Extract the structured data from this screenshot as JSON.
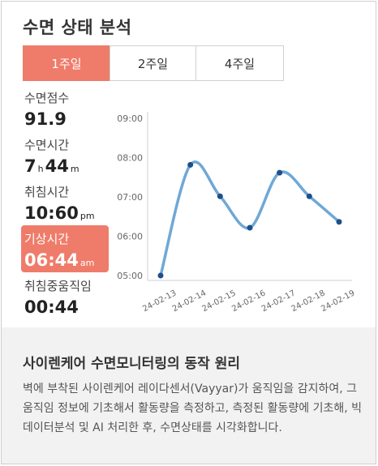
{
  "title": "수면 상태 분석",
  "tabs": [
    {
      "label": "1주일",
      "active": true
    },
    {
      "label": "2주일",
      "active": false
    },
    {
      "label": "4주일",
      "active": false
    }
  ],
  "stats": {
    "sleep_score": {
      "label": "수면점수",
      "value": "91.9"
    },
    "sleep_time": {
      "label": "수면시간",
      "hours": "7",
      "h_unit": "h",
      "minutes": "44",
      "m_unit": "m"
    },
    "bed_time": {
      "label": "취침시간",
      "value": "10:60",
      "suffix": "pm"
    },
    "wake_time": {
      "label": "기상시간",
      "value": "06:44",
      "suffix": "am"
    },
    "movement": {
      "label": "취침중움직임",
      "value": "00:44"
    }
  },
  "chart_data": {
    "type": "line",
    "x": [
      "24-02-13",
      "24-02-14",
      "24-02-15",
      "24-02-16",
      "24-02-17",
      "24-02-18",
      "24-02-19"
    ],
    "points": [
      {
        "x": 0.0,
        "y": "05:00"
      },
      {
        "x": 1.0,
        "y": "07:49"
      },
      {
        "x": 2.0,
        "y": "07:01"
      },
      {
        "x": 3.0,
        "y": "06:13"
      },
      {
        "x": 4.0,
        "y": "07:37"
      },
      {
        "x": 5.0,
        "y": "07:01"
      },
      {
        "x": 6.0,
        "y": "06:22"
      }
    ],
    "y_ticks": [
      "09:00",
      "08:00",
      "07:00",
      "06:00",
      "05:00"
    ],
    "ylim": [
      "05:00",
      "09:00"
    ],
    "line_color": "#6fa8d6",
    "point_color": "#1f4e8c"
  },
  "info": {
    "heading": "사이렌케어 수면모니터링의 동작 원리",
    "body": "벽에 부착된 사이렌케어 레이다센서(Vayyar)가 움직임을 감지하여, 그 움직임 정보에 기초해서 활동량을 측정하고, 측정된 활동량에 기초해, 빅데이터분석 및 AI 처리한 후, 수면상태를 시각화합니다."
  },
  "colors": {
    "accent": "#ef7c6a",
    "bottom_bg": "#f2f2f2"
  }
}
